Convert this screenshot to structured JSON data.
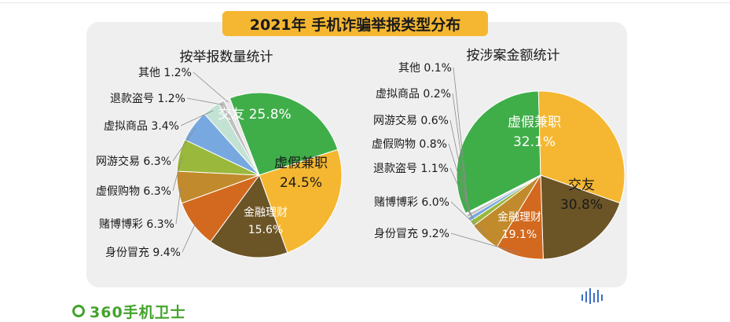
{
  "title": "2021年 手机诈骗举报类型分布",
  "brand": {
    "name": "360手机卫士"
  },
  "chart_data": [
    {
      "type": "pie",
      "title": "按举报数量统计",
      "slices": [
        {
          "label": "交友",
          "value": 25.8,
          "value_text": "25.8%",
          "color": "#3fae49",
          "text_color": "#ffffff"
        },
        {
          "label": "虚假兼职",
          "value": 24.5,
          "value_text": "24.5%",
          "color": "#f5b731",
          "text_color": "#1a1a1a"
        },
        {
          "label": "金融理财",
          "value": 15.6,
          "value_text": "15.6%",
          "color": "#6b5426",
          "text_color": "#ffffff"
        },
        {
          "label": "身份冒充",
          "value": 9.4,
          "value_text": "9.4%",
          "color": "#d2691e",
          "text_color": "#1a1a1a"
        },
        {
          "label": "赌博博彩",
          "value": 6.3,
          "value_text": "6.3%",
          "color": "#c18a2c",
          "text_color": "#1a1a1a"
        },
        {
          "label": "虚假购物",
          "value": 6.3,
          "value_text": "6.3%",
          "color": "#9ab83c",
          "text_color": "#1a1a1a"
        },
        {
          "label": "网游交易",
          "value": 6.3,
          "value_text": "6.3%",
          "color": "#77a8df",
          "text_color": "#1a1a1a"
        },
        {
          "label": "虚拟商品",
          "value": 3.4,
          "value_text": "3.4%",
          "color": "#c3e2d3",
          "text_color": "#1a1a1a"
        },
        {
          "label": "退款盗号",
          "value": 1.2,
          "value_text": "1.2%",
          "color": "#bfbfbf",
          "text_color": "#1a1a1a"
        },
        {
          "label": "其他",
          "value": 1.2,
          "value_text": "1.2%",
          "color": "#e8e8e8",
          "text_color": "#1a1a1a"
        }
      ]
    },
    {
      "type": "pie",
      "title": "按涉案金额统计",
      "slices": [
        {
          "label": "虚假兼职",
          "value": 32.1,
          "value_text": "32.1%",
          "color": "#3fae49",
          "text_color": "#ffffff"
        },
        {
          "label": "交友",
          "value": 30.8,
          "value_text": "30.8%",
          "color": "#f5b731",
          "text_color": "#1a1a1a"
        },
        {
          "label": "金融理财",
          "value": 19.1,
          "value_text": "19.1%",
          "color": "#6b5426",
          "text_color": "#ffffff"
        },
        {
          "label": "身份冒充",
          "value": 9.2,
          "value_text": "9.2%",
          "color": "#d2691e",
          "text_color": "#1a1a1a"
        },
        {
          "label": "赌博博彩",
          "value": 6.0,
          "value_text": "6.0%",
          "color": "#c18a2c",
          "text_color": "#1a1a1a"
        },
        {
          "label": "退款盗号",
          "value": 1.1,
          "value_text": "1.1%",
          "color": "#9ab83c",
          "text_color": "#1a1a1a"
        },
        {
          "label": "虚假购物",
          "value": 0.8,
          "value_text": "0.8%",
          "color": "#77a8df",
          "text_color": "#1a1a1a"
        },
        {
          "label": "网游交易",
          "value": 0.6,
          "value_text": "0.6%",
          "color": "#bfbfbf",
          "text_color": "#1a1a1a"
        },
        {
          "label": "虚拟商品",
          "value": 0.2,
          "value_text": "0.2%",
          "color": "#c3e2d3",
          "text_color": "#1a1a1a"
        },
        {
          "label": "其他",
          "value": 0.1,
          "value_text": "0.1%",
          "color": "#e8e8e8",
          "text_color": "#1a1a1a"
        }
      ]
    }
  ]
}
